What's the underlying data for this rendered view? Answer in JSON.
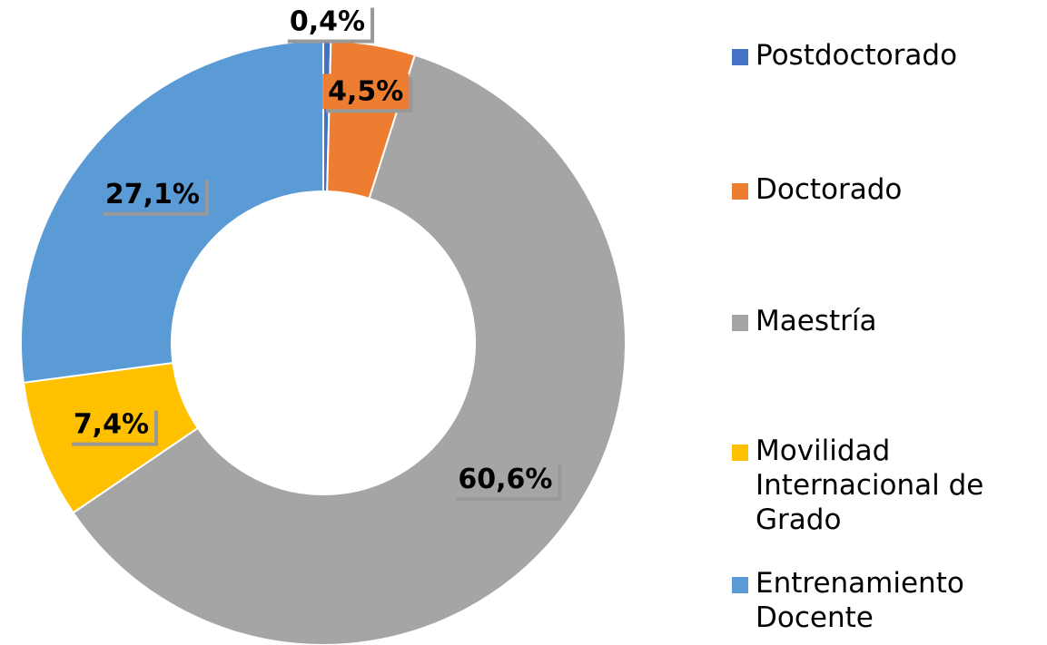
{
  "chart_data": {
    "type": "donut",
    "categories": [
      "Postdoctorado",
      "Doctorado",
      "Maestría",
      "Movilidad Internacional de Grado",
      "Entrenamiento Docente"
    ],
    "values": [
      0.4,
      4.5,
      60.6,
      7.4,
      27.1
    ],
    "value_labels": [
      "0,4%",
      "4,5%",
      "60,6%",
      "7,4%",
      "27,1%"
    ],
    "colors": [
      "#4472c4",
      "#ed7d31",
      "#a5a5a5",
      "#ffc000",
      "#5b9bd5"
    ],
    "legend": "right"
  }
}
